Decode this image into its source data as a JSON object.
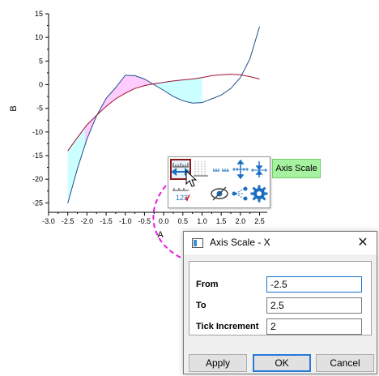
{
  "chart_data": {
    "type": "line",
    "xlabel": "A",
    "ylabel": "B",
    "xlim": [
      -3.0,
      2.7
    ],
    "ylim": [
      -27,
      15
    ],
    "x_ticks": [
      "-3.0",
      "-2.5",
      "-2.0",
      "-1.5",
      "-1.0",
      "-0.5",
      "0.0",
      "0.5",
      "1.0",
      "1.5",
      "2.0",
      "2.5"
    ],
    "y_ticks": [
      "15",
      "10",
      "5",
      "0",
      "-5",
      "-10",
      "-15",
      "-20",
      "-25"
    ],
    "series": [
      {
        "color": "#1f4e8c",
        "x": [
          -2.5,
          -2.25,
          -2.0,
          -1.75,
          -1.5,
          -1.25,
          -1.0,
          -0.75,
          -0.5,
          -0.25,
          0.0,
          0.25,
          0.5,
          0.75,
          1.0,
          1.25,
          1.5,
          1.75,
          2.0,
          2.25,
          2.5
        ],
        "y": [
          -25.1,
          -17.8,
          -11.5,
          -6.6,
          -2.9,
          -0.6,
          2.0,
          1.9,
          1.2,
          0.0,
          -1.2,
          -2.5,
          -3.4,
          -3.9,
          -3.8,
          -3.0,
          -2.2,
          -0.8,
          1.5,
          5.5,
          12.3
        ]
      },
      {
        "color": "#a01030",
        "x": [
          -2.5,
          -2.25,
          -2.0,
          -1.75,
          -1.5,
          -1.25,
          -1.0,
          -0.75,
          -0.5,
          -0.25,
          0.0,
          0.25,
          0.5,
          0.75,
          1.0,
          1.25,
          1.5,
          1.75,
          2.0,
          2.25,
          2.5
        ],
        "y": [
          -14.0,
          -11.2,
          -8.5,
          -6.5,
          -4.6,
          -3.0,
          -1.8,
          -0.8,
          -0.2,
          0.2,
          0.5,
          0.8,
          1.0,
          1.2,
          1.5,
          1.9,
          2.1,
          2.2,
          2.1,
          1.7,
          1.2
        ]
      }
    ],
    "fills": [
      {
        "between": [
          0,
          1
        ],
        "x_range": [
          -2.5,
          -2.05
        ],
        "color": "#ccffff"
      },
      {
        "between": [
          0,
          1
        ],
        "x_range": [
          -2.05,
          -0.2
        ],
        "color": "#ffccff"
      },
      {
        "between": [
          0,
          1
        ],
        "x_range": [
          -0.2,
          1.0
        ],
        "color": "#ccffff"
      }
    ],
    "grid": false
  },
  "toolbar": {
    "icons": [
      "axis-scale-icon",
      "grid-lines-icon",
      "axis-break-icon",
      "axis-position-icon",
      "axis-position-down-icon",
      "tick-labels-icon",
      "hide-axis-icon",
      "axis-share-icon",
      "axis-settings-icon"
    ],
    "tooltip": "Axis Scale",
    "accent": "#1b6fc2"
  },
  "dialog": {
    "title": "Axis Scale - X",
    "fields": [
      {
        "label": "From",
        "value": "-2.5"
      },
      {
        "label": "To",
        "value": "2.5"
      },
      {
        "label": "Tick Increment",
        "value": "2"
      }
    ],
    "buttons": {
      "apply": "Apply",
      "ok": "OK",
      "cancel": "Cancel"
    },
    "close_glyph": "✕"
  },
  "callout_color": "#e619e6"
}
